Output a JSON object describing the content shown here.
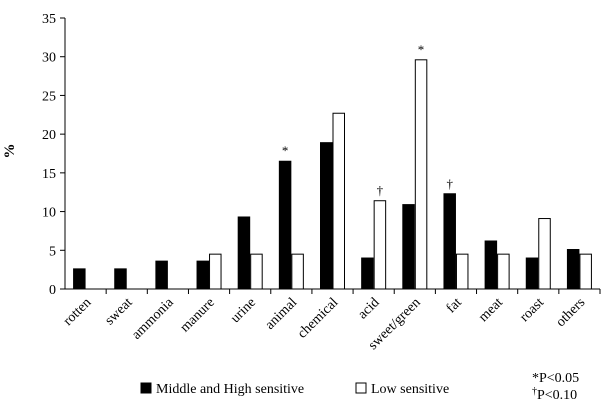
{
  "chart_data": {
    "type": "bar",
    "ylabel": "%",
    "ylim": [
      0,
      35
    ],
    "yticks": [
      0,
      5,
      10,
      15,
      20,
      25,
      30,
      35
    ],
    "grid": false,
    "legend_position": "bottom",
    "categories": [
      "rotten",
      "sweat",
      "ammonia",
      "manure",
      "urine",
      "animal",
      "chemical",
      "acid",
      "sweet/green",
      "fat",
      "meat",
      "roast",
      "others"
    ],
    "series": [
      {
        "name": "Middle and High sensitive",
        "color": "#000000",
        "values": [
          2.6,
          2.6,
          3.6,
          3.6,
          9.3,
          16.5,
          18.9,
          4.0,
          10.9,
          12.3,
          6.2,
          4.0,
          5.1
        ]
      },
      {
        "name": "Low sensitive",
        "color": "#ffffff",
        "values": [
          0,
          0,
          0,
          4.5,
          4.5,
          4.5,
          22.7,
          11.4,
          29.6,
          4.5,
          4.5,
          9.1,
          4.5
        ]
      }
    ],
    "annotations": [
      {
        "category": "animal",
        "series": 0,
        "text": "*"
      },
      {
        "category": "acid",
        "series": 1,
        "text": "†"
      },
      {
        "category": "sweet/green",
        "series": 1,
        "text": "*"
      },
      {
        "category": "fat",
        "series": 0,
        "text": "†"
      }
    ],
    "footnotes": [
      {
        "symbol": "*",
        "text": "P<0.05"
      },
      {
        "symbol": "†",
        "text": "P<0.10"
      }
    ]
  }
}
